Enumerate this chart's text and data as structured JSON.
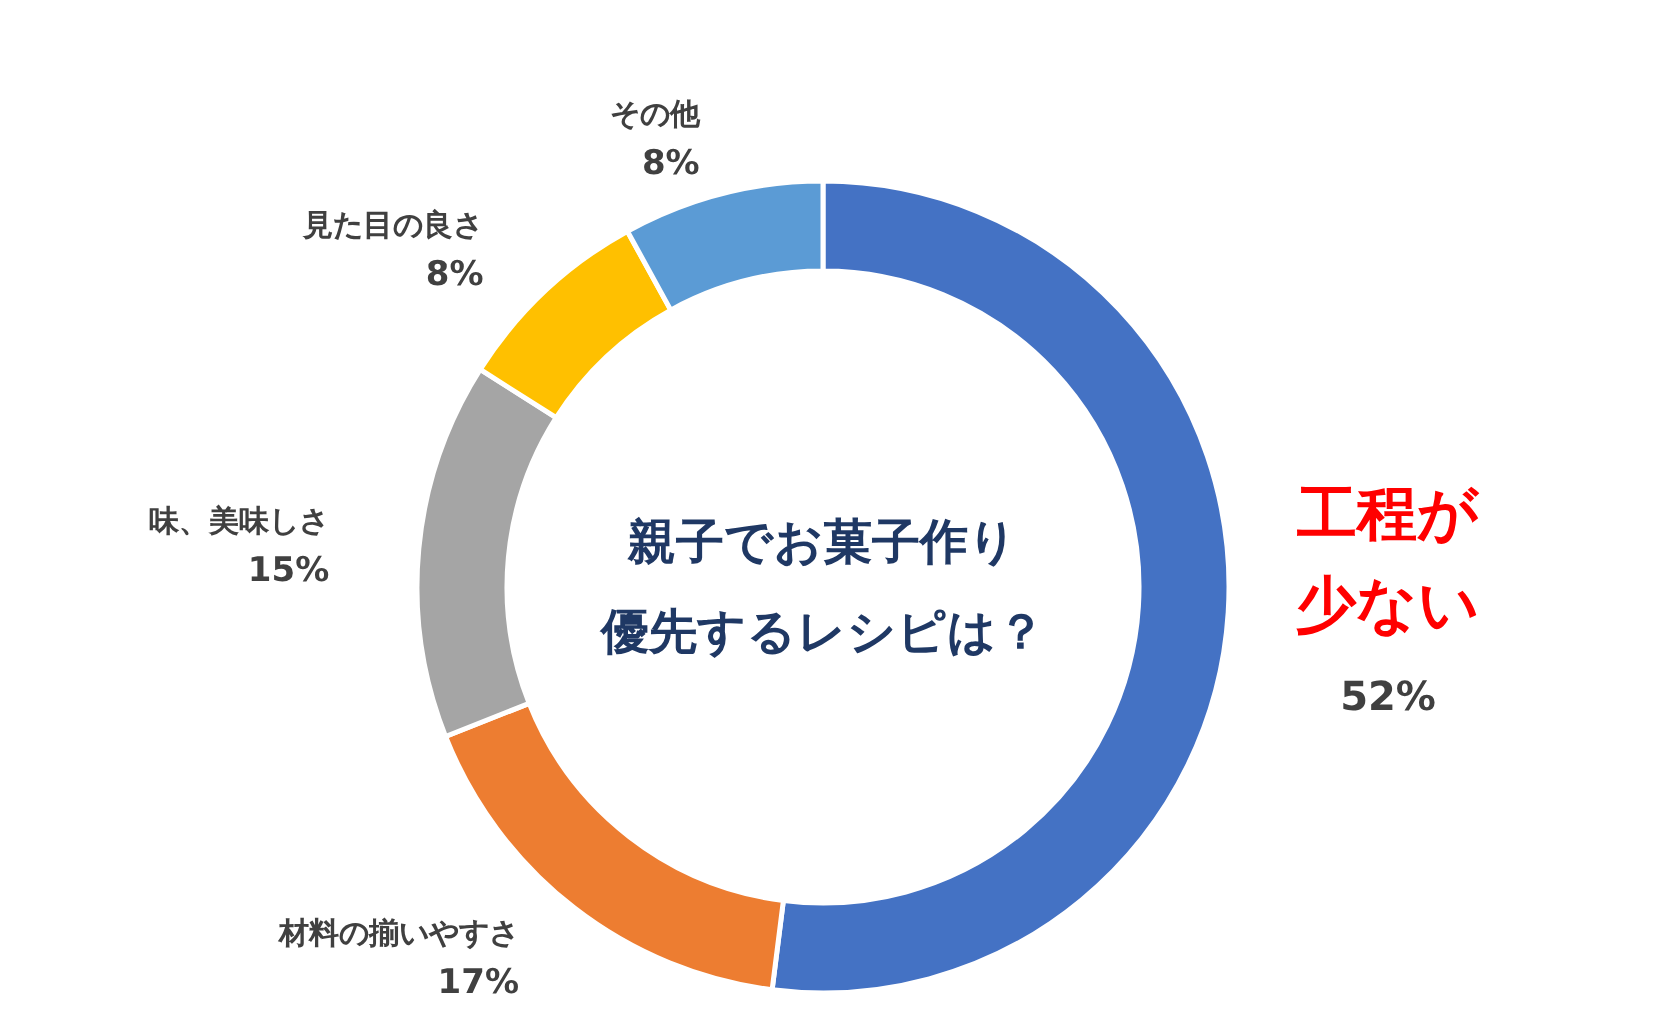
{
  "chart_data": {
    "type": "donut",
    "title": "親子でお菓子作り優先するレシピは？",
    "categories": [
      "工程が少ない",
      "材料の揃いやすさ",
      "味、美味しさ",
      "見た目の良さ",
      "その他"
    ],
    "values": [
      52,
      17,
      15,
      8,
      8
    ],
    "value_labels": [
      "52%",
      "17%",
      "15%",
      "8%",
      "8%"
    ],
    "colors": [
      "#4472c4",
      "#ed7d31",
      "#a5a5a5",
      "#ffc000",
      "#5b9bd5"
    ]
  }
}
